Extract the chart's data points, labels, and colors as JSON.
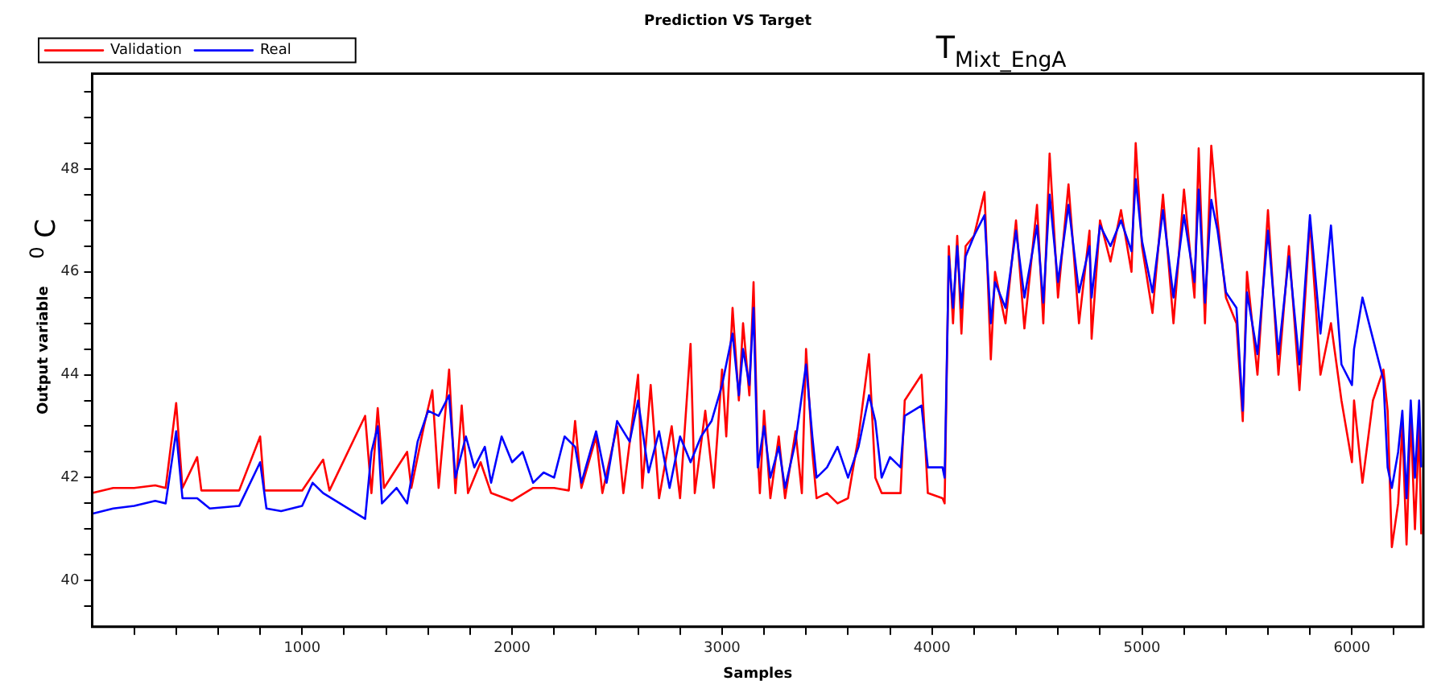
{
  "chart_data": {
    "type": "line",
    "title": "Prediction VS Target",
    "xlabel": "Samples",
    "ylabel": "Output variable",
    "annotations": [
      "T$_{Mixt_EngA}$",
      "$^{0}$ C"
    ],
    "legend": "top left",
    "marker": "none",
    "line_style": "solid",
    "grid": false,
    "xlim": [
      0,
      6340
    ],
    "ylim": [
      39.1,
      49.85
    ],
    "xticks": [
      {
        "value": 200,
        "label": null
      },
      {
        "value": 400,
        "label": null
      },
      {
        "value": 600,
        "label": null
      },
      {
        "value": 800,
        "label": null
      },
      1000,
      {
        "value": 1200,
        "label": null
      },
      {
        "value": 1400,
        "label": null
      },
      {
        "value": 1600,
        "label": null
      },
      {
        "value": 1800,
        "label": null
      },
      2000,
      {
        "value": 2200,
        "label": null
      },
      {
        "value": 2400,
        "label": null
      },
      {
        "value": 2600,
        "label": null
      },
      {
        "value": 2800,
        "label": null
      },
      3000,
      {
        "value": 3200,
        "label": null
      },
      {
        "value": 3400,
        "label": null
      },
      {
        "value": 3600,
        "label": null
      },
      {
        "value": 3800,
        "label": null
      },
      4000,
      {
        "value": 4200,
        "label": null
      },
      {
        "value": 4400,
        "label": null
      },
      {
        "value": 4600,
        "label": null
      },
      {
        "value": 4800,
        "label": null
      },
      5000,
      {
        "value": 5200,
        "label": null
      },
      {
        "value": 5400,
        "label": null
      },
      {
        "value": 5600,
        "label": null
      },
      {
        "value": 5800,
        "label": null
      },
      6000,
      {
        "value": 6200,
        "label": null
      }
    ],
    "yticks": [
      {
        "value": 39.5,
        "label": null
      },
      40,
      {
        "value": 40.5,
        "label": null
      },
      {
        "value": 41,
        "label": null
      },
      {
        "value": 41.5,
        "label": null
      },
      42,
      {
        "value": 42.5,
        "label": null
      },
      {
        "value": 43,
        "label": null
      },
      {
        "value": 43.5,
        "label": null
      },
      44,
      {
        "value": 44.5,
        "label": null
      },
      {
        "value": 45,
        "label": null
      },
      {
        "value": 45.5,
        "label": null
      },
      46,
      {
        "value": 46.5,
        "label": null
      },
      {
        "value": 47,
        "label": null
      },
      {
        "value": 47.5,
        "label": null
      },
      48,
      {
        "value": 48.5,
        "label": null
      },
      {
        "value": 49,
        "label": null
      },
      {
        "value": 49.5,
        "label": null
      }
    ],
    "series": [
      {
        "name": "Validation",
        "color": "#ff0000",
        "x": [
          0,
          100,
          200,
          300,
          350,
          400,
          430,
          500,
          520,
          700,
          800,
          820,
          1000,
          1100,
          1130,
          1300,
          1330,
          1360,
          1390,
          1500,
          1520,
          1580,
          1620,
          1650,
          1700,
          1730,
          1760,
          1790,
          1850,
          1900,
          2000,
          2100,
          2200,
          2270,
          2300,
          2330,
          2400,
          2430,
          2500,
          2530,
          2600,
          2620,
          2660,
          2700,
          2760,
          2800,
          2850,
          2870,
          2920,
          2960,
          3000,
          3020,
          3050,
          3080,
          3100,
          3130,
          3150,
          3170,
          3180,
          3200,
          3230,
          3270,
          3300,
          3350,
          3380,
          3400,
          3430,
          3450,
          3500,
          3550,
          3600,
          3650,
          3700,
          3730,
          3760,
          3800,
          3850,
          3870,
          3950,
          3980,
          4050,
          4060,
          4080,
          4100,
          4120,
          4140,
          4160,
          4200,
          4250,
          4280,
          4300,
          4350,
          4400,
          4440,
          4500,
          4530,
          4560,
          4600,
          4650,
          4700,
          4750,
          4760,
          4800,
          4850,
          4900,
          4950,
          4970,
          5000,
          5050,
          5100,
          5150,
          5200,
          5250,
          5270,
          5300,
          5330,
          5360,
          5400,
          5450,
          5480,
          5500,
          5550,
          5600,
          5650,
          5700,
          5750,
          5800,
          5850,
          5900,
          5950,
          6000,
          6010,
          6050,
          6100,
          6150,
          6170,
          6190,
          6220,
          6240,
          6260,
          6280,
          6300,
          6320,
          6330
        ],
        "values": [
          41.7,
          41.8,
          41.8,
          41.85,
          41.8,
          43.45,
          41.8,
          42.4,
          41.75,
          41.75,
          42.8,
          41.75,
          41.75,
          42.35,
          41.75,
          43.2,
          41.7,
          43.35,
          41.8,
          42.5,
          41.8,
          43.0,
          43.7,
          41.8,
          44.1,
          41.7,
          43.4,
          41.7,
          42.3,
          41.7,
          41.55,
          41.8,
          41.8,
          41.75,
          43.1,
          41.8,
          42.8,
          41.7,
          43.0,
          41.7,
          44.0,
          41.8,
          43.8,
          41.6,
          43.0,
          41.6,
          44.6,
          41.7,
          43.3,
          41.8,
          44.1,
          42.8,
          45.3,
          43.5,
          45.0,
          43.6,
          45.8,
          42.5,
          41.7,
          43.3,
          41.6,
          42.8,
          41.6,
          42.9,
          41.7,
          44.5,
          42.5,
          41.6,
          41.7,
          41.5,
          41.6,
          42.8,
          44.4,
          42.0,
          41.7,
          41.7,
          41.7,
          43.5,
          44.0,
          41.7,
          41.6,
          41.5,
          46.5,
          45.0,
          46.7,
          44.8,
          46.5,
          46.7,
          47.55,
          44.3,
          46.0,
          45.0,
          47.0,
          44.9,
          47.3,
          45.0,
          48.3,
          45.5,
          47.7,
          45.0,
          46.8,
          44.7,
          47.0,
          46.2,
          47.2,
          46.0,
          48.5,
          46.5,
          45.2,
          47.5,
          45.0,
          47.6,
          45.5,
          48.4,
          45.0,
          48.45,
          47.0,
          45.5,
          45.0,
          43.1,
          46.0,
          44.0,
          47.2,
          44.0,
          46.5,
          43.7,
          47.0,
          44.0,
          45.0,
          43.5,
          42.3,
          43.5,
          41.9,
          43.5,
          44.1,
          43.3,
          40.65,
          41.5,
          43.0,
          40.7,
          43.2,
          41.0,
          43.0,
          40.9
        ]
      },
      {
        "name": "Real",
        "color": "#0000ff",
        "x": [
          0,
          100,
          200,
          300,
          350,
          400,
          430,
          500,
          560,
          700,
          800,
          830,
          900,
          1000,
          1050,
          1100,
          1200,
          1300,
          1330,
          1360,
          1380,
          1450,
          1500,
          1550,
          1600,
          1650,
          1700,
          1730,
          1780,
          1820,
          1870,
          1900,
          1950,
          2000,
          2050,
          2100,
          2150,
          2200,
          2250,
          2300,
          2330,
          2400,
          2450,
          2500,
          2560,
          2600,
          2650,
          2700,
          2750,
          2800,
          2850,
          2900,
          2950,
          3000,
          3050,
          3080,
          3100,
          3130,
          3150,
          3170,
          3200,
          3230,
          3270,
          3300,
          3350,
          3400,
          3430,
          3450,
          3500,
          3550,
          3600,
          3650,
          3700,
          3730,
          3760,
          3800,
          3850,
          3870,
          3950,
          3980,
          4050,
          4060,
          4080,
          4100,
          4120,
          4140,
          4160,
          4200,
          4250,
          4280,
          4300,
          4350,
          4400,
          4440,
          4500,
          4530,
          4560,
          4600,
          4650,
          4700,
          4750,
          4760,
          4800,
          4850,
          4900,
          4950,
          4970,
          5000,
          5050,
          5100,
          5150,
          5200,
          5250,
          5270,
          5300,
          5330,
          5360,
          5400,
          5450,
          5480,
          5500,
          5550,
          5600,
          5650,
          5700,
          5750,
          5800,
          5850,
          5900,
          5950,
          6000,
          6010,
          6050,
          6100,
          6150,
          6170,
          6190,
          6220,
          6240,
          6260,
          6280,
          6300,
          6320,
          6330
        ],
        "values": [
          41.3,
          41.4,
          41.45,
          41.55,
          41.5,
          42.9,
          41.6,
          41.6,
          41.4,
          41.45,
          42.3,
          41.4,
          41.35,
          41.45,
          41.9,
          41.7,
          41.45,
          41.2,
          42.5,
          43.0,
          41.5,
          41.8,
          41.5,
          42.7,
          43.3,
          43.2,
          43.6,
          42.0,
          42.8,
          42.2,
          42.6,
          41.9,
          42.8,
          42.3,
          42.5,
          41.9,
          42.1,
          42.0,
          42.8,
          42.6,
          41.9,
          42.9,
          41.9,
          43.1,
          42.7,
          43.5,
          42.1,
          42.9,
          41.8,
          42.8,
          42.3,
          42.8,
          43.1,
          43.8,
          44.8,
          43.6,
          44.5,
          43.8,
          45.3,
          42.2,
          43.0,
          42.0,
          42.6,
          41.8,
          42.7,
          44.2,
          42.8,
          42.0,
          42.2,
          42.6,
          42.0,
          42.6,
          43.6,
          43.1,
          42.0,
          42.4,
          42.2,
          43.2,
          43.4,
          42.2,
          42.2,
          42.0,
          46.3,
          45.3,
          46.5,
          45.3,
          46.3,
          46.7,
          47.1,
          45.0,
          45.8,
          45.3,
          46.8,
          45.5,
          46.9,
          45.4,
          47.5,
          45.8,
          47.3,
          45.6,
          46.5,
          45.5,
          46.9,
          46.5,
          47.0,
          46.4,
          47.8,
          46.6,
          45.6,
          47.2,
          45.5,
          47.1,
          45.8,
          47.6,
          45.4,
          47.4,
          46.8,
          45.6,
          45.3,
          43.3,
          45.6,
          44.4,
          46.8,
          44.4,
          46.3,
          44.2,
          47.1,
          44.8,
          46.9,
          44.2,
          43.8,
          44.5,
          45.5,
          44.7,
          43.9,
          42.2,
          41.8,
          42.5,
          43.3,
          41.6,
          43.5,
          42.0,
          43.5,
          42.2
        ]
      }
    ]
  }
}
